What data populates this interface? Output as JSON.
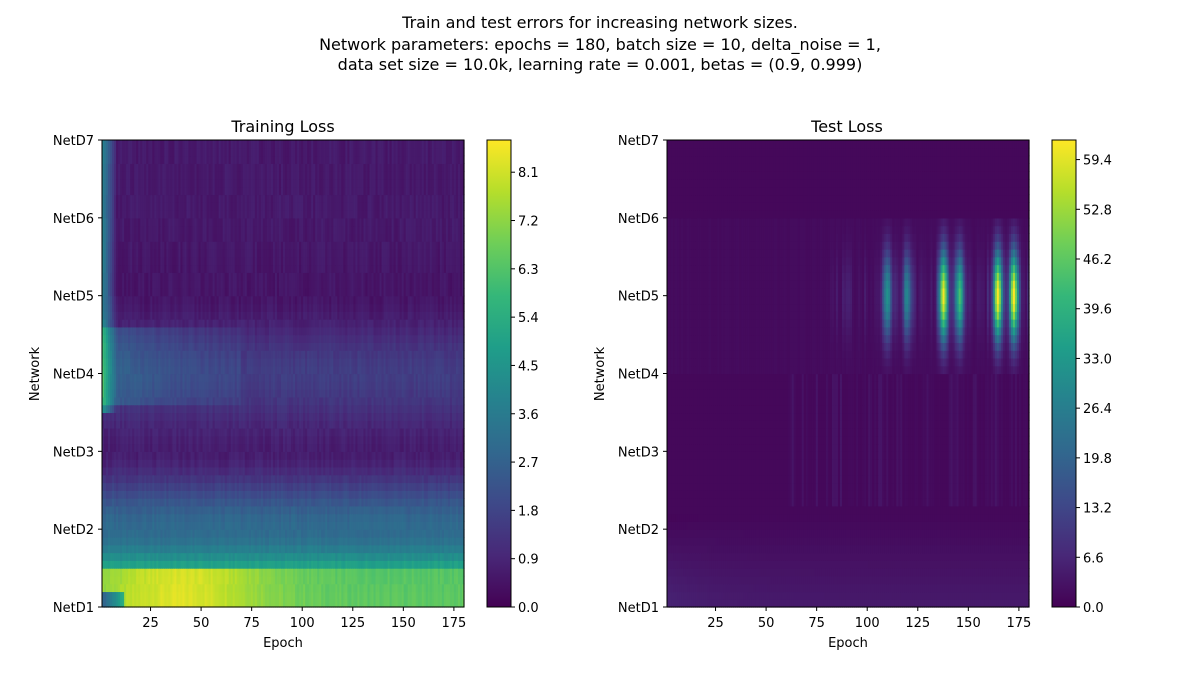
{
  "figure": {
    "suptitle_lines": [
      "Train and test errors for increasing network sizes.",
      "Network parameters: epochs = 180, batch size = 10, delta_noise = 1,",
      "data set size = 10.0k, learning rate = 0.001, betas = (0.9, 0.999)"
    ]
  },
  "chart_data": [
    {
      "type": "heatmap",
      "title": "Training Loss",
      "xlabel": "Epoch",
      "ylabel": "Network",
      "x_range": [
        1,
        180
      ],
      "x_ticks": [
        25,
        50,
        75,
        100,
        125,
        150,
        175
      ],
      "y_categories": [
        "NetD1",
        "NetD2",
        "NetD3",
        "NetD4",
        "NetD5",
        "NetD6",
        "NetD7"
      ],
      "colormap": "viridis",
      "colorbar_range": [
        0,
        8.7
      ],
      "colorbar_ticks": [
        "0.0",
        "0.9",
        "1.8",
        "2.7",
        "3.6",
        "4.5",
        "5.4",
        "6.3",
        "7.2",
        "8.1"
      ],
      "approx_mean_loss": {
        "NetD1": 7.5,
        "NetD2": 3.0,
        "NetD3": 0.7,
        "NetD4": 1.6,
        "NetD5": 0.5,
        "NetD6": 0.6,
        "NetD7": 0.6
      }
    },
    {
      "type": "heatmap",
      "title": "Test Loss",
      "xlabel": "Epoch",
      "ylabel": "Network",
      "x_range": [
        1,
        180
      ],
      "x_ticks": [
        25,
        50,
        75,
        100,
        125,
        150,
        175
      ],
      "y_categories": [
        "NetD1",
        "NetD2",
        "NetD3",
        "NetD4",
        "NetD5",
        "NetD6",
        "NetD7"
      ],
      "colormap": "viridis",
      "colorbar_range": [
        0,
        62
      ],
      "colorbar_ticks": [
        "0.0",
        "6.6",
        "13.2",
        "19.8",
        "26.4",
        "33.0",
        "39.6",
        "46.2",
        "52.8",
        "59.4"
      ],
      "peaks_NetD5": [
        {
          "epoch": 110,
          "value": 30
        },
        {
          "epoch": 120,
          "value": 25
        },
        {
          "epoch": 138,
          "value": 58
        },
        {
          "epoch": 146,
          "value": 40
        },
        {
          "epoch": 165,
          "value": 60
        },
        {
          "epoch": 173,
          "value": 58
        }
      ]
    }
  ],
  "colors": {
    "viridis_stops": [
      "#440154",
      "#482878",
      "#3e4989",
      "#31688e",
      "#26828e",
      "#1f9e89",
      "#35b779",
      "#6ece58",
      "#b5de2b",
      "#fde725"
    ]
  }
}
